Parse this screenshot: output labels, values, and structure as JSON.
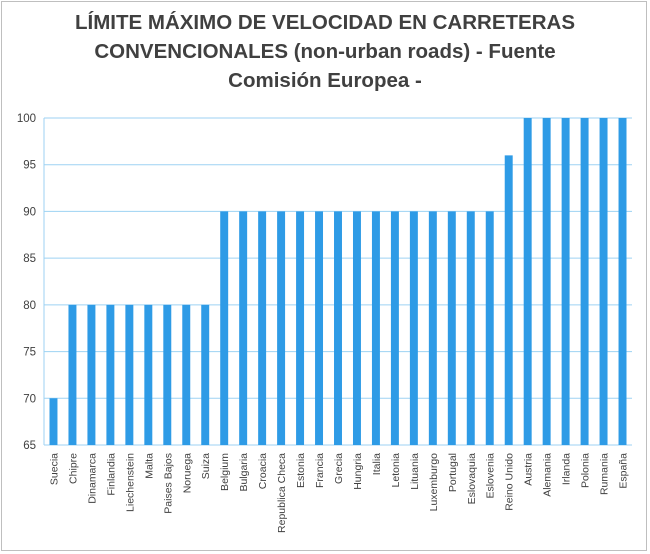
{
  "chart_data": {
    "type": "bar",
    "title_lines": [
      "LÍMITE MÁXIMO DE VELOCIDAD EN CARRETERAS",
      "CONVENCIONALES (non-urban roads) - Fuente",
      "Comisión Europea -"
    ],
    "categories": [
      "Suecia",
      "Chipre",
      "Dinamarca",
      "Finlandia",
      "Liechenstein",
      "Malta",
      "Paises Bajos",
      "Noruega",
      "Suiza",
      "Belgium",
      "Bulgaria",
      "Croacia",
      "Republica Checa",
      "Estonia",
      "Francia",
      "Grecia",
      "Hungria",
      "Italia",
      "Letonia",
      "Lituania",
      "Luxemburgo",
      "Portugal",
      "Eslovaquia",
      "Eslovenia",
      "Reino Unido",
      "Austria",
      "Alemania",
      "Irlanda",
      "Polonia",
      "Rumania",
      "España"
    ],
    "values": [
      70,
      80,
      80,
      80,
      80,
      80,
      80,
      80,
      80,
      90,
      90,
      90,
      90,
      90,
      90,
      90,
      90,
      90,
      90,
      90,
      90,
      90,
      90,
      90,
      96,
      100,
      100,
      100,
      100,
      100,
      100
    ],
    "yticks": [
      65,
      70,
      75,
      80,
      85,
      90,
      95,
      100
    ],
    "ylim": [
      65,
      100
    ],
    "grid": true,
    "legend": "none",
    "bar_color": "#2e9be6",
    "grid_color": "#9dd2f3",
    "axis_color": "#9dd2f3"
  }
}
